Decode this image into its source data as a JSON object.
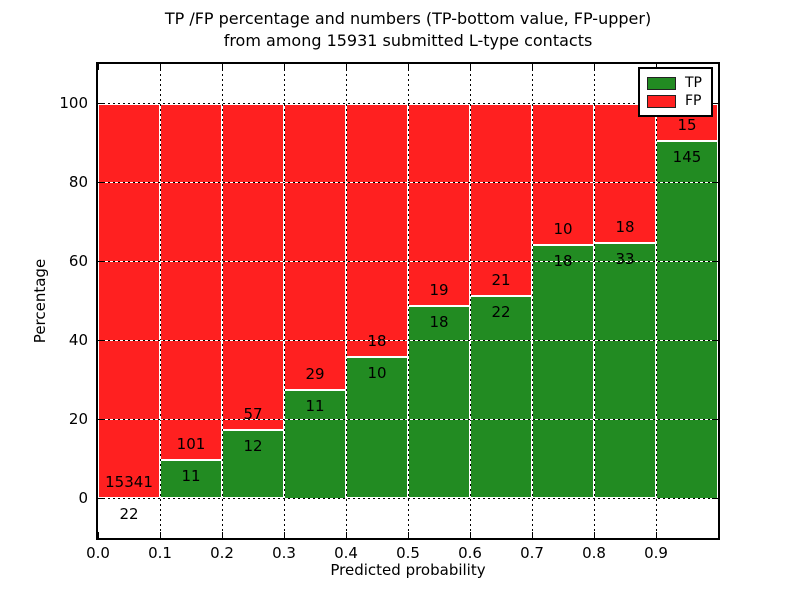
{
  "figure": {
    "title_line1": "TP /FP percentage and numbers (TP-bottom value, FP-upper)",
    "title_line2": "from among 15931 submitted L-type contacts",
    "xlabel": "Predicted probability",
    "ylabel": "Percentage"
  },
  "colors": {
    "tp_green": "#228b22",
    "fp_red": "#ff2020",
    "grid": "#000000",
    "background": "#ffffff",
    "text": "#000000"
  },
  "chart_data": {
    "type": "bar",
    "stacked": true,
    "normalized_to_percent": true,
    "title": "TP /FP percentage and numbers (TP-bottom value, FP-upper) from among 15931 submitted L-type contacts",
    "xlabel": "Predicted probability",
    "ylabel": "Percentage",
    "total_contacts": 15931,
    "grid": true,
    "xlim": [
      0.0,
      1.0
    ],
    "ylim": [
      -10,
      110
    ],
    "x_ticks": [
      "0.0",
      "0.1",
      "0.2",
      "0.3",
      "0.4",
      "0.5",
      "0.6",
      "0.7",
      "0.8",
      "0.9"
    ],
    "y_ticks": [
      "0",
      "20",
      "40",
      "60",
      "80",
      "100"
    ],
    "y_tick_values": [
      0,
      20,
      40,
      60,
      80,
      100
    ],
    "bar_width": 0.1,
    "bin_edges": [
      0.0,
      0.1,
      0.2,
      0.3,
      0.4,
      0.5,
      0.6,
      0.7,
      0.8,
      0.9,
      1.0
    ],
    "categories": [
      "0.0-0.1",
      "0.1-0.2",
      "0.2-0.3",
      "0.3-0.4",
      "0.4-0.5",
      "0.5-0.6",
      "0.6-0.7",
      "0.7-0.8",
      "0.8-0.9",
      "0.9-1.0"
    ],
    "series": [
      {
        "name": "TP",
        "color": "#228b22",
        "counts": [
          22,
          11,
          12,
          11,
          10,
          18,
          22,
          18,
          33,
          145
        ]
      },
      {
        "name": "FP",
        "color": "#ff2020",
        "counts": [
          15341,
          101,
          57,
          29,
          18,
          19,
          21,
          10,
          18,
          15
        ]
      }
    ],
    "tp_percent_of_bin": [
      0.14,
      9.82,
      17.39,
      27.5,
      35.71,
      48.65,
      51.16,
      64.29,
      64.71,
      90.63
    ],
    "fp_percent_of_bin": [
      99.86,
      90.18,
      82.61,
      72.5,
      64.29,
      51.35,
      48.84,
      35.71,
      35.29,
      9.38
    ],
    "legend": {
      "position": "upper right",
      "entries": [
        {
          "label": "TP",
          "color": "#228b22"
        },
        {
          "label": "FP",
          "color": "#ff2020"
        }
      ]
    }
  }
}
